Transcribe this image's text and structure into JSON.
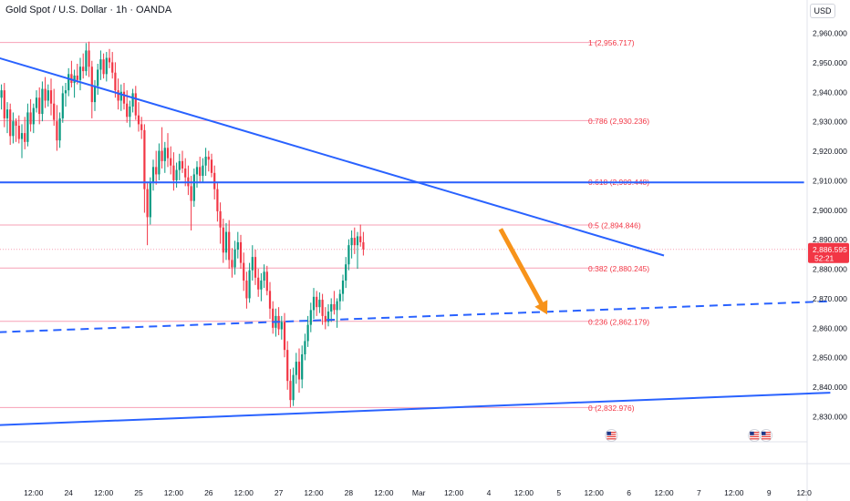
{
  "header": {
    "title": "Gold Spot / U.S. Dollar · 1h · OANDA",
    "currency": "USD"
  },
  "price_tag": {
    "price": "2,886.595",
    "countdown": "52:21",
    "color": "#f23645"
  },
  "colors": {
    "up": "#089981",
    "down": "#f23645",
    "trendline": "#2962ff",
    "fib": "#f7a1b6",
    "fib_text": "#f23645",
    "arrow": "#f7931a"
  },
  "chart_data": {
    "type": "candlestick",
    "title": "Gold Spot / U.S. Dollar · 1h · OANDA",
    "ylim": [
      2824,
      2966
    ],
    "x_range_hours": [
      0,
      370
    ],
    "y_ticks": [
      2960,
      2950,
      2940,
      2930,
      2920,
      2910,
      2900,
      2890,
      2880,
      2870,
      2860,
      2850,
      2840,
      2830
    ],
    "y_tick_labels": [
      "2,960.000",
      "2,950.000",
      "2,940.000",
      "2,930.000",
      "2,920.000",
      "2,910.000",
      "2,900.000",
      "2,890.000",
      "2,880.000",
      "2,870.000",
      "2,860.000",
      "2,850.000",
      "2,840.000",
      "2,830.000"
    ],
    "x_ticks": [
      {
        "h": 12,
        "label": "12:00"
      },
      {
        "h": 24,
        "label": "24"
      },
      {
        "h": 36,
        "label": "12:00"
      },
      {
        "h": 48,
        "label": "25"
      },
      {
        "h": 60,
        "label": "12:00"
      },
      {
        "h": 72,
        "label": "26"
      },
      {
        "h": 84,
        "label": "12:00"
      },
      {
        "h": 96,
        "label": "27"
      },
      {
        "h": 108,
        "label": "12:00"
      },
      {
        "h": 120,
        "label": "28"
      },
      {
        "h": 132,
        "label": "12:00"
      },
      {
        "h": 144,
        "label": "Mar"
      },
      {
        "h": 156,
        "label": "12:00"
      },
      {
        "h": 168,
        "label": "4"
      },
      {
        "h": 180,
        "label": "12:00"
      },
      {
        "h": 192,
        "label": "5"
      },
      {
        "h": 204,
        "label": "12:00"
      },
      {
        "h": 216,
        "label": "6"
      },
      {
        "h": 228,
        "label": "12:00"
      },
      {
        "h": 240,
        "label": "7"
      },
      {
        "h": 252,
        "label": "12:00"
      },
      {
        "h": 264,
        "label": "9"
      },
      {
        "h": 276,
        "label": "12:0"
      }
    ],
    "fib_levels": [
      {
        "label": "1 (2,956.717)",
        "price": 2956.717
      },
      {
        "label": "0.786 (2,930.236)",
        "price": 2930.236
      },
      {
        "label": "0.618 (2,909.448)",
        "price": 2909.448
      },
      {
        "label": "0.5 (2,894.846)",
        "price": 2894.846
      },
      {
        "label": "0.382 (2,880.245)",
        "price": 2880.245
      },
      {
        "label": "0.236 (2,862.179)",
        "price": 2862.179
      },
      {
        "label": "0 (2,832.976)",
        "price": 2832.976
      }
    ],
    "fib_h_range": [
      0,
      205
    ],
    "current_price": 2886.595,
    "trendlines": [
      {
        "name": "descending-resistance",
        "h1": 0,
        "p1": 2951.5,
        "h2": 228,
        "p2": 2884.5,
        "style": "solid"
      },
      {
        "name": "horizontal-resistance",
        "h1": 0,
        "p1": 2909.3,
        "h2": 276,
        "p2": 2909.3,
        "style": "solid"
      },
      {
        "name": "rising-dashed-support",
        "h1": 0,
        "p1": 2858.5,
        "h2": 285,
        "p2": 2869.0,
        "style": "dashed"
      },
      {
        "name": "rising-support",
        "h1": 0,
        "p1": 2827.0,
        "h2": 285,
        "p2": 2838.0,
        "style": "solid"
      }
    ],
    "arrow": {
      "h1": 172,
      "p1": 2893.5,
      "h2": 188,
      "p2": 2864.5
    },
    "events": [
      {
        "h": 210,
        "label": "US"
      },
      {
        "h": 259,
        "label": "US"
      },
      {
        "h": 263,
        "label": "US"
      }
    ],
    "candles": [
      [
        0,
        2944.0,
        2947.0,
        2936.5,
        2938.0
      ],
      [
        1,
        2938.0,
        2942.5,
        2934.0,
        2940.5
      ],
      [
        2,
        2940.5,
        2943.0,
        2928.0,
        2931.0
      ],
      [
        3,
        2931.0,
        2936.5,
        2926.0,
        2934.0
      ],
      [
        4,
        2934.0,
        2936.0,
        2922.0,
        2925.0
      ],
      [
        5,
        2925.0,
        2933.0,
        2922.5,
        2930.0
      ],
      [
        6,
        2930.0,
        2931.0,
        2923.0,
        2928.5
      ],
      [
        7,
        2928.5,
        2932.0,
        2922.5,
        2924.0
      ],
      [
        8,
        2924.0,
        2929.0,
        2917.5,
        2926.0
      ],
      [
        9,
        2926.0,
        2931.5,
        2920.5,
        2923.0
      ],
      [
        10,
        2923.0,
        2936.0,
        2921.5,
        2933.0
      ],
      [
        11,
        2933.0,
        2937.5,
        2926.5,
        2929.0
      ],
      [
        12,
        2929.0,
        2936.0,
        2926.0,
        2934.5
      ],
      [
        13,
        2934.5,
        2940.5,
        2933.0,
        2938.0
      ],
      [
        14,
        2938.0,
        2941.5,
        2929.0,
        2932.5
      ],
      [
        15,
        2932.5,
        2943.5,
        2930.0,
        2941.0
      ],
      [
        16,
        2941.0,
        2945.0,
        2934.5,
        2937.0
      ],
      [
        17,
        2937.0,
        2942.5,
        2935.0,
        2940.5
      ],
      [
        18,
        2940.5,
        2944.5,
        2932.0,
        2936.0
      ],
      [
        19,
        2936.0,
        2941.0,
        2928.5,
        2930.5
      ],
      [
        20,
        2930.0,
        2935.5,
        2920.0,
        2923.5
      ],
      [
        21,
        2923.5,
        2933.0,
        2921.0,
        2931.0
      ],
      [
        22,
        2931.0,
        2942.0,
        2929.5,
        2939.5
      ],
      [
        23,
        2939.5,
        2943.0,
        2935.0,
        2940.5
      ],
      [
        24,
        2940.5,
        2948.0,
        2938.5,
        2946.0
      ],
      [
        25,
        2946.0,
        2950.5,
        2941.5,
        2943.0
      ],
      [
        26,
        2943.0,
        2947.5,
        2938.0,
        2945.5
      ],
      [
        27,
        2945.5,
        2949.5,
        2942.5,
        2944.0
      ],
      [
        28,
        2944.0,
        2951.5,
        2940.5,
        2948.5
      ],
      [
        29,
        2948.5,
        2953.0,
        2944.5,
        2947.0
      ],
      [
        30,
        2947.0,
        2956.5,
        2945.5,
        2954.0
      ],
      [
        31,
        2954.0,
        2957.0,
        2945.0,
        2948.5
      ],
      [
        32,
        2948.5,
        2950.5,
        2931.0,
        2936.5
      ],
      [
        33,
        2936.5,
        2944.0,
        2933.5,
        2942.0
      ],
      [
        34,
        2942.0,
        2949.5,
        2939.0,
        2947.5
      ],
      [
        35,
        2947.5,
        2954.0,
        2944.0,
        2951.0
      ],
      [
        36,
        2951.0,
        2953.0,
        2944.5,
        2946.0
      ],
      [
        37,
        2946.0,
        2953.5,
        2943.5,
        2951.5
      ],
      [
        38,
        2951.5,
        2954.5,
        2948.0,
        2950.0
      ],
      [
        39,
        2950.0,
        2953.5,
        2944.5,
        2946.5
      ],
      [
        40,
        2946.5,
        2950.0,
        2938.0,
        2940.5
      ],
      [
        41,
        2940.5,
        2944.5,
        2934.0,
        2937.0
      ],
      [
        42,
        2937.0,
        2942.5,
        2933.5,
        2940.0
      ],
      [
        43,
        2940.0,
        2943.0,
        2934.0,
        2936.0
      ],
      [
        44,
        2936.0,
        2940.5,
        2929.5,
        2931.5
      ],
      [
        45,
        2931.5,
        2937.0,
        2928.0,
        2935.0
      ],
      [
        46,
        2935.0,
        2941.0,
        2933.0,
        2939.5
      ],
      [
        47,
        2939.5,
        2942.0,
        2930.5,
        2932.0
      ],
      [
        48,
        2932.0,
        2936.5,
        2926.5,
        2929.0
      ],
      [
        49,
        2929.0,
        2931.5,
        2924.0,
        2927.0
      ],
      [
        50,
        2927.0,
        2929.0,
        2899.0,
        2907.0
      ],
      [
        51,
        2907.0,
        2909.0,
        2888.0,
        2897.5
      ],
      [
        52,
        2897.5,
        2911.0,
        2895.0,
        2909.5
      ],
      [
        53,
        2909.5,
        2917.0,
        2906.5,
        2914.5
      ],
      [
        54,
        2914.5,
        2920.0,
        2908.5,
        2912.0
      ],
      [
        55,
        2912.0,
        2922.5,
        2910.0,
        2920.0
      ],
      [
        56,
        2920.0,
        2928.0,
        2914.0,
        2916.5
      ],
      [
        57,
        2916.5,
        2923.0,
        2912.5,
        2921.0
      ],
      [
        58,
        2921.0,
        2926.0,
        2914.5,
        2917.5
      ],
      [
        59,
        2917.5,
        2921.5,
        2912.0,
        2915.0
      ],
      [
        60,
        2915.0,
        2919.5,
        2906.5,
        2910.0
      ],
      [
        61,
        2910.0,
        2916.0,
        2907.5,
        2913.5
      ],
      [
        62,
        2913.5,
        2919.0,
        2910.0,
        2916.5
      ],
      [
        63,
        2916.5,
        2920.0,
        2912.5,
        2914.0
      ],
      [
        64,
        2914.0,
        2917.5,
        2908.0,
        2911.0
      ],
      [
        65,
        2911.0,
        2915.0,
        2905.0,
        2908.0
      ],
      [
        66,
        2908.0,
        2911.5,
        2893.0,
        2903.0
      ],
      [
        67,
        2903.0,
        2914.0,
        2901.0,
        2912.0
      ],
      [
        68,
        2912.0,
        2916.5,
        2907.5,
        2914.5
      ],
      [
        69,
        2914.5,
        2918.0,
        2909.0,
        2911.5
      ],
      [
        70,
        2911.5,
        2917.5,
        2909.5,
        2915.0
      ],
      [
        71,
        2915.0,
        2921.0,
        2911.5,
        2918.0
      ],
      [
        72,
        2918.0,
        2920.0,
        2913.0,
        2917.0
      ],
      [
        73,
        2917.0,
        2919.0,
        2911.0,
        2912.5
      ],
      [
        74,
        2912.5,
        2915.0,
        2903.5,
        2907.0
      ],
      [
        75,
        2907.0,
        2909.0,
        2896.0,
        2899.5
      ],
      [
        76,
        2899.5,
        2902.5,
        2888.5,
        2894.0
      ],
      [
        77,
        2894.0,
        2897.0,
        2882.0,
        2885.5
      ],
      [
        78,
        2885.5,
        2895.5,
        2883.0,
        2892.5
      ],
      [
        79,
        2892.5,
        2896.5,
        2880.0,
        2883.0
      ],
      [
        80,
        2883.0,
        2887.0,
        2877.0,
        2880.5
      ],
      [
        81,
        2880.5,
        2889.5,
        2878.0,
        2886.5
      ],
      [
        82,
        2886.5,
        2892.5,
        2883.5,
        2889.0
      ],
      [
        83,
        2889.0,
        2891.5,
        2880.0,
        2882.0
      ],
      [
        84,
        2882.0,
        2885.5,
        2872.5,
        2876.0
      ],
      [
        85,
        2876.0,
        2879.0,
        2866.5,
        2870.0
      ],
      [
        86,
        2870.0,
        2882.0,
        2868.5,
        2879.5
      ],
      [
        87,
        2879.5,
        2888.0,
        2876.0,
        2884.0
      ],
      [
        88,
        2884.0,
        2886.5,
        2874.5,
        2877.0
      ],
      [
        89,
        2877.0,
        2880.0,
        2870.5,
        2873.0
      ],
      [
        90,
        2873.0,
        2878.5,
        2869.0,
        2876.0
      ],
      [
        91,
        2876.0,
        2881.5,
        2873.5,
        2879.0
      ],
      [
        92,
        2879.0,
        2881.0,
        2871.0,
        2872.5
      ],
      [
        93,
        2872.5,
        2875.5,
        2863.0,
        2866.5
      ],
      [
        94,
        2866.5,
        2869.0,
        2858.0,
        2860.0
      ],
      [
        95,
        2860.0,
        2866.5,
        2857.0,
        2864.0
      ],
      [
        96,
        2864.0,
        2867.0,
        2857.5,
        2859.5
      ],
      [
        97,
        2859.5,
        2864.0,
        2856.0,
        2862.0
      ],
      [
        98,
        2862.0,
        2865.0,
        2850.0,
        2852.5
      ],
      [
        99,
        2852.5,
        2855.5,
        2839.0,
        2842.0
      ],
      [
        100,
        2842.0,
        2846.0,
        2833.0,
        2835.5
      ],
      [
        101,
        2835.5,
        2846.5,
        2833.5,
        2844.0
      ],
      [
        102,
        2844.0,
        2851.5,
        2841.0,
        2848.5
      ],
      [
        103,
        2848.5,
        2853.0,
        2838.0,
        2842.5
      ],
      [
        104,
        2842.5,
        2854.0,
        2839.5,
        2851.0
      ],
      [
        105,
        2851.0,
        2858.0,
        2849.0,
        2855.5
      ],
      [
        106,
        2855.5,
        2864.0,
        2853.5,
        2861.0
      ],
      [
        107,
        2861.0,
        2868.5,
        2858.5,
        2866.0
      ],
      [
        108,
        2866.0,
        2873.5,
        2863.0,
        2870.5
      ],
      [
        109,
        2870.5,
        2872.5,
        2864.0,
        2867.0
      ],
      [
        110,
        2867.0,
        2872.0,
        2865.0,
        2869.5
      ],
      [
        111,
        2869.5,
        2871.5,
        2861.0,
        2864.0
      ],
      [
        112,
        2864.0,
        2867.0,
        2859.5,
        2862.0
      ],
      [
        113,
        2862.0,
        2868.0,
        2860.5,
        2865.5
      ],
      [
        114,
        2865.5,
        2870.0,
        2862.0,
        2868.0
      ],
      [
        115,
        2868.0,
        2872.5,
        2864.5,
        2866.0
      ],
      [
        116,
        2866.0,
        2870.0,
        2860.0,
        2869.0
      ],
      [
        117,
        2869.0,
        2873.0,
        2866.0,
        2871.5
      ],
      [
        118,
        2871.5,
        2878.0,
        2869.0,
        2876.0
      ],
      [
        119,
        2876.0,
        2884.0,
        2873.5,
        2881.5
      ],
      [
        120,
        2881.5,
        2890.0,
        2879.5,
        2888.0
      ],
      [
        121,
        2888.0,
        2893.0,
        2883.5,
        2890.5
      ],
      [
        122,
        2890.5,
        2894.0,
        2885.0,
        2888.0
      ],
      [
        123,
        2888.0,
        2892.5,
        2880.0,
        2891.0
      ],
      [
        124,
        2891.0,
        2895.0,
        2887.5,
        2889.0
      ],
      [
        125,
        2889.0,
        2892.5,
        2884.5,
        2886.595
      ]
    ]
  }
}
